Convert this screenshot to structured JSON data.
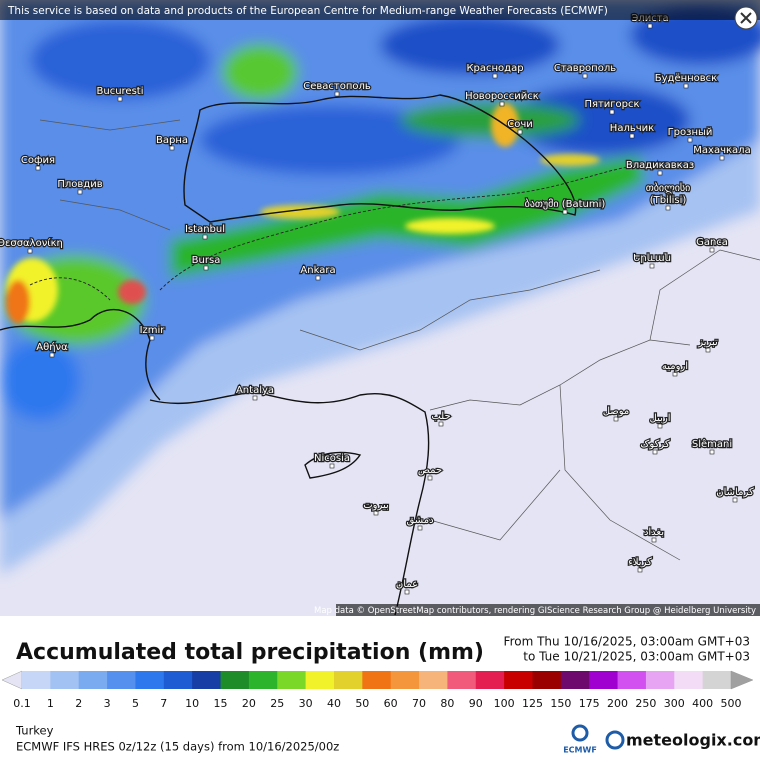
{
  "notice": "This service is based on data and products of the European Centre for Medium-range Weather Forecasts (ECMWF)",
  "map": {
    "labels": [
      "Элиста",
      "Bucuresti",
      "Краснодар",
      "Ставрополь",
      "Севастополь",
      "Новороссийск",
      "Будённовск",
      "Пятигорск",
      "Сочи",
      "Нальчик",
      "Грозный",
      "София",
      "Варна",
      "Махачкала",
      "Владикавказ",
      "Пловдив",
      "თბილისი",
      "(Tbilisi)",
      "ბათუმი (Batumi)",
      "Θεσσαλονίκη",
      "Istanbul",
      "Bursa",
      "Ganca",
      "Ankara",
      "Երևան",
      "Izmir",
      "Αθήνα",
      "تبریز",
      "ارومیه",
      "Antalya",
      "حلب",
      "موصل",
      "اربیل",
      "کرکوک",
      "Slêmani",
      "Nicosia",
      "حمص",
      "کرماشان",
      "بيروت",
      "دمشق",
      "بغداد",
      "کربلاء",
      "عمان"
    ],
    "credit": "Map data © OpenStreetMap contributors, rendering GIScience Research Group @ Heidelberg University"
  },
  "legend": {
    "title": "Accumulated total precipitation (mm)",
    "from": "From Thu 10/16/2025, 03:00am GMT+03",
    "to": "to Tue 10/21/2025, 03:00am GMT+03",
    "ticks": [
      0.1,
      1,
      2,
      3,
      5,
      7,
      10,
      15,
      20,
      25,
      30,
      40,
      50,
      60,
      70,
      80,
      90,
      100,
      125,
      150,
      175,
      200,
      250,
      300,
      400,
      500
    ],
    "colors": [
      "#e4e4f4",
      "#c6d6f6",
      "#a2c2f4",
      "#7aaaf0",
      "#5690ee",
      "#2e78ee",
      "#1e5cd4",
      "#163ea4",
      "#1e8c28",
      "#2cb42c",
      "#7ad828",
      "#f2f22a",
      "#e2d02c",
      "#f07414",
      "#f4963c",
      "#f6b47a",
      "#f25a7c",
      "#e41e50",
      "#c80000",
      "#9a0000",
      "#6e0a6e",
      "#a000d0",
      "#d250f0",
      "#e6a4f2",
      "#f2dcf6",
      "#d4d4d4",
      "#a0a0a0"
    ]
  },
  "footer": {
    "region": "Turkey",
    "model": "ECMWF IFS HRES 0z/12z (15 days) from  10/16/2025/00z",
    "ecmwf": "ECMWF",
    "brand": "meteologix.com"
  }
}
